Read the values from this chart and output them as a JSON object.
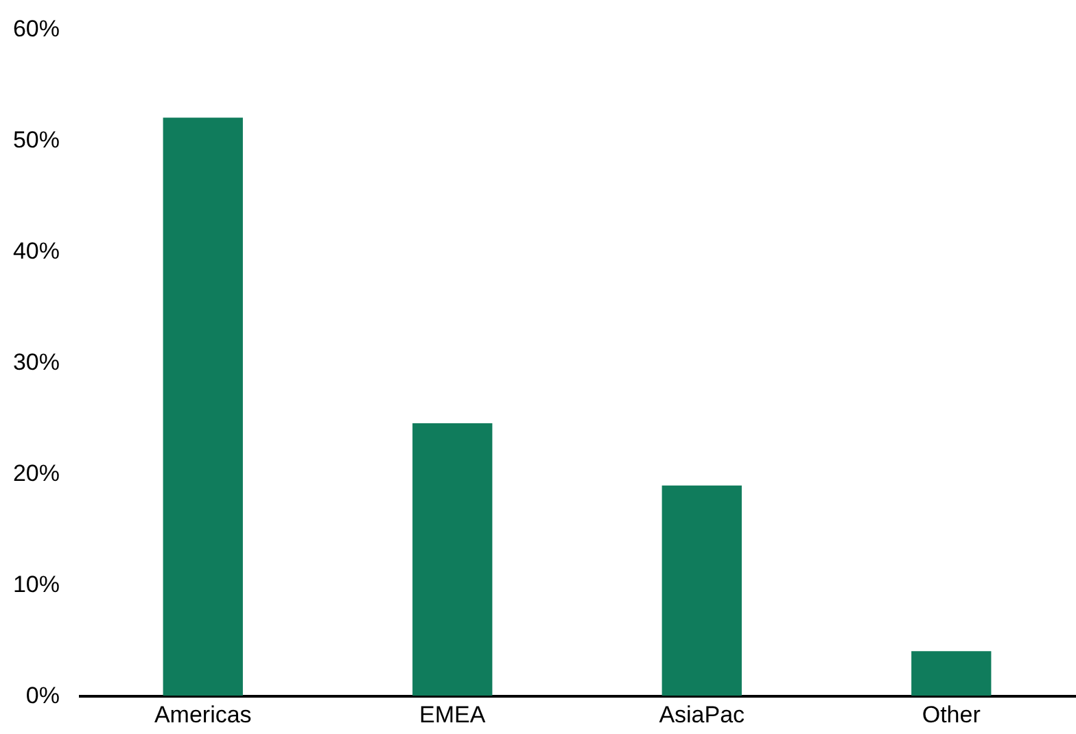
{
  "chart_data": {
    "type": "bar",
    "categories": [
      "Americas",
      "EMEA",
      "AsiaPac",
      "Other"
    ],
    "values": [
      52,
      24.5,
      18.9,
      4
    ],
    "color": "#107c5c",
    "ylim": [
      0,
      60
    ],
    "yticks": [
      {
        "value": 0,
        "label": "0%"
      },
      {
        "value": 10,
        "label": "10%"
      },
      {
        "value": 20,
        "label": "20%"
      },
      {
        "value": 30,
        "label": "30%"
      },
      {
        "value": 40,
        "label": "40%"
      },
      {
        "value": 50,
        "label": "50%"
      },
      {
        "value": 60,
        "label": "60%"
      }
    ],
    "grid": false
  }
}
